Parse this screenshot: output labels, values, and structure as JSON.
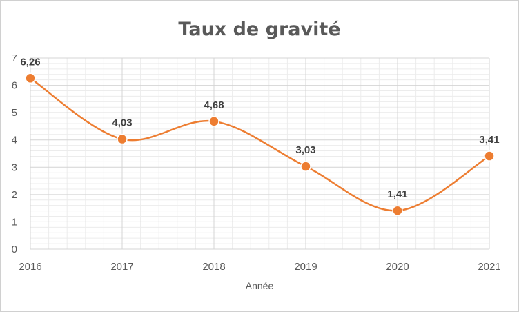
{
  "chart_data": {
    "type": "line",
    "title": "Taux de gravité",
    "xlabel": "Année",
    "ylabel": "",
    "x": [
      "2016",
      "2017",
      "2018",
      "2019",
      "2020",
      "2021"
    ],
    "series": [
      {
        "values": [
          6.26,
          4.03,
          4.68,
          3.03,
          1.41,
          3.41
        ],
        "data_labels": [
          "6,26",
          "4,03",
          "4,68",
          "3,03",
          "1,41",
          "3,41"
        ],
        "color": "#ED7D31"
      }
    ],
    "ylim": [
      0,
      7
    ],
    "yticks": [
      "0",
      "1",
      "2",
      "3",
      "4",
      "5",
      "6",
      "7"
    ],
    "grid": true,
    "minor_grid": true,
    "smooth": true,
    "legend": "none"
  }
}
